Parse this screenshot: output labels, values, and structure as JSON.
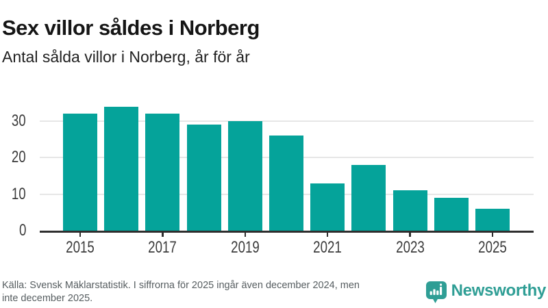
{
  "chart_data": {
    "type": "bar",
    "title": "Sex villor såldes i Norberg",
    "subtitle": "Antal sålda villor i Norberg, år för år",
    "categories": [
      "2015",
      "2016",
      "2017",
      "2018",
      "2019",
      "2020",
      "2021",
      "2022",
      "2023",
      "2024",
      "2025"
    ],
    "values": [
      32,
      34,
      32,
      29,
      30,
      26,
      13,
      18,
      11,
      9,
      6
    ],
    "xlabel": "",
    "ylabel": "",
    "ylim": [
      0,
      36
    ],
    "yticks": [
      0,
      10,
      20,
      30
    ],
    "xtick_labels": [
      "2015",
      "2017",
      "2019",
      "2021",
      "2023",
      "2025"
    ],
    "bar_color": "#05a39a",
    "grid": "horizontal",
    "legend": "none"
  },
  "footer": {
    "source_lines": [
      "Källa: Svensk Mäklarstatistik. I siffrorna för 2025 ingår även december 2024, men",
      "inte december 2025."
    ]
  },
  "brand": {
    "name": "Newsworthy",
    "color": "#2f9e95",
    "icon": "newsworthy-speech-bubble-bar-chart-icon"
  }
}
